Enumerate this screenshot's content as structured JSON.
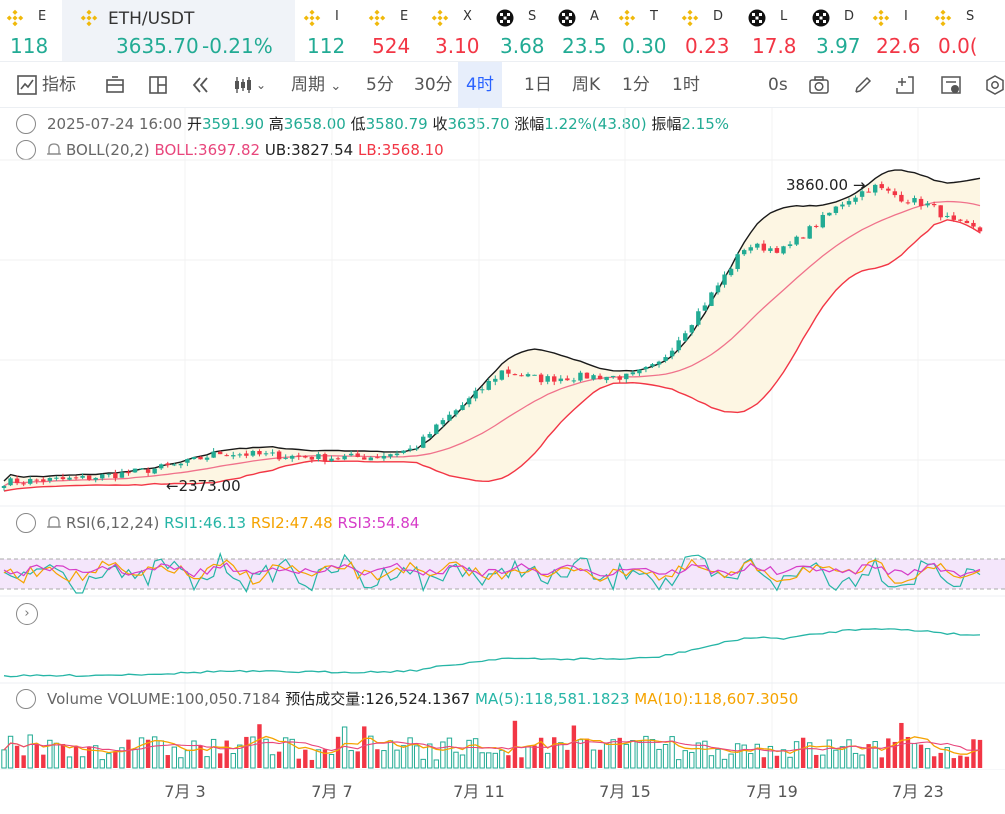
{
  "ticker": [
    {
      "name": "E",
      "price": "118",
      "dir": "up",
      "icon": "binance-icon"
    },
    {
      "name": "ETH/USDT",
      "price": "3635.70",
      "change": "-0.21%",
      "dir": "up",
      "icon": "binance-icon",
      "active": true
    },
    {
      "name": "I",
      "price": "112",
      "dir": "up",
      "icon": "binance-icon"
    },
    {
      "name": "E",
      "price": "524",
      "dir": "down",
      "icon": "binance-icon"
    },
    {
      "name": "X",
      "price": "3.10",
      "dir": "down",
      "icon": "binance-icon"
    },
    {
      "name": "S",
      "price": "3.68",
      "dir": "up",
      "icon": "okx-icon"
    },
    {
      "name": "A",
      "price": "23.5",
      "dir": "up",
      "icon": "okx-icon"
    },
    {
      "name": "T",
      "price": "0.30",
      "dir": "up",
      "icon": "binance-icon"
    },
    {
      "name": "D",
      "price": "0.23",
      "dir": "down",
      "icon": "binance-icon"
    },
    {
      "name": "L",
      "price": "17.8",
      "dir": "down",
      "icon": "okx-icon"
    },
    {
      "name": "D",
      "price": "3.97",
      "dir": "up",
      "icon": "okx-icon"
    },
    {
      "name": "I",
      "price": "22.6",
      "dir": "down",
      "icon": "binance-icon"
    },
    {
      "name": "S",
      "price": "0.0(",
      "dir": "down",
      "icon": "binance-icon"
    }
  ],
  "toolbar": {
    "indicators": "指标",
    "period": "周期",
    "intervals": [
      "5分",
      "30分",
      "4时",
      "1日",
      "周K",
      "1分",
      "1时"
    ],
    "selected_interval": "4时",
    "countdown": "0s"
  },
  "ohlc": {
    "date": "2025-07-24 16:00",
    "open_label": "开",
    "open": "3591.90",
    "high_label": "高",
    "high": "3658.00",
    "low_label": "低",
    "low": "3580.79",
    "close_label": "收",
    "close": "3635.70",
    "change_label": "涨幅",
    "change": "1.22%(43.80)",
    "amp_label": "振幅",
    "amp": "2.15%"
  },
  "boll": {
    "name": "BOLL(20,2)",
    "mid": "BOLL:3697.82",
    "ub": "UB:3827.54",
    "lb": "LB:3568.10",
    "high_mark": "3860.00",
    "low_mark": "2373.00"
  },
  "rsi": {
    "name": "RSI(6,12,24)",
    "rsi1": "RSI1:46.13",
    "rsi2": "RSI2:47.48",
    "rsi3": "RSI3:54.84"
  },
  "volume": {
    "name": "Volume",
    "volume": "VOLUME:100,050.7184",
    "estimate": "预估成交量:126,524.1367",
    "ma5": "MA(5):118,581.1823",
    "ma10": "MA(10):118,607.3050"
  },
  "dates": [
    "7月 3",
    "7月 7",
    "7月 11",
    "7月 15",
    "7月 19",
    "7月 23"
  ],
  "colors": {
    "up": "#22ab94",
    "down": "#f23645",
    "boll_band": "#fdf6e3",
    "boll_mid": "#f0728b",
    "boll_upper": "#1a1a1a",
    "boll_lower": "#f23645",
    "rsi_band": "#f4e6fb",
    "accent": "#2962ff"
  },
  "chart_data": {
    "type": "candlestick",
    "price_axis": {
      "min": 2373,
      "max": 3860
    },
    "price_path": [
      [
        0,
        2373
      ],
      [
        0.08,
        2390
      ],
      [
        0.13,
        2420
      ],
      [
        0.18,
        2460
      ],
      [
        0.22,
        2520
      ],
      [
        0.28,
        2505
      ],
      [
        0.33,
        2495
      ],
      [
        0.38,
        2500
      ],
      [
        0.42,
        2540
      ],
      [
        0.45,
        2680
      ],
      [
        0.48,
        2800
      ],
      [
        0.51,
        2930
      ],
      [
        0.55,
        2890
      ],
      [
        0.6,
        2905
      ],
      [
        0.64,
        2900
      ],
      [
        0.67,
        2960
      ],
      [
        0.7,
        3150
      ],
      [
        0.73,
        3350
      ],
      [
        0.76,
        3560
      ],
      [
        0.8,
        3540
      ],
      [
        0.83,
        3660
      ],
      [
        0.86,
        3780
      ],
      [
        0.89,
        3860
      ],
      [
        0.92,
        3800
      ],
      [
        0.95,
        3760
      ],
      [
        0.97,
        3680
      ],
      [
        1.0,
        3635.7
      ]
    ]
  }
}
